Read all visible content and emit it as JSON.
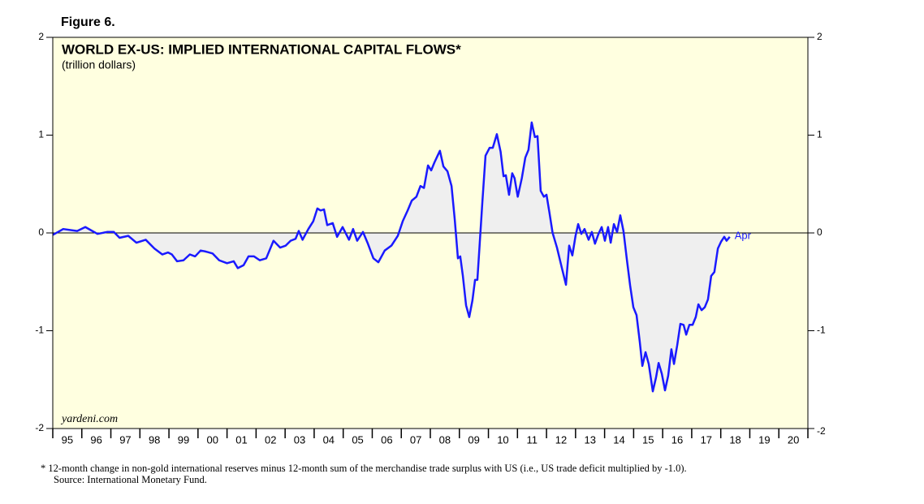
{
  "chart_data": {
    "type": "line",
    "figure_label": "Figure 6.",
    "title": "WORLD EX-US: IMPLIED INTERNATIONAL CAPITAL FLOWS*",
    "subtitle": "(trillion dollars)",
    "watermark": "yardeni.com",
    "annotation": "Apr",
    "footnote": "*  12-month change in non-gold international reserves minus 12-month sum of the merchandise trade surplus with US (i.e., US trade deficit multiplied by -1.0).",
    "source": "Source: International Monetary Fund.",
    "area_fill": "#efefef",
    "background": "#ffffe0",
    "series": [
      {
        "name": "World ex-US implied capital flows",
        "color": "#1a1aff",
        "x": [
          1995.0,
          1995.36,
          1995.84,
          1996.12,
          1996.3,
          1996.54,
          1996.87,
          1997.1,
          1997.3,
          1997.6,
          1997.88,
          1998.2,
          1998.5,
          1998.77,
          1998.97,
          1999.1,
          1999.28,
          1999.5,
          1999.72,
          1999.9,
          2000.09,
          2000.26,
          2000.5,
          2000.73,
          2001.0,
          2001.23,
          2001.37,
          2001.57,
          2001.74,
          2001.93,
          2002.13,
          2002.35,
          2002.6,
          2002.83,
          2003.02,
          2003.19,
          2003.36,
          2003.47,
          2003.6,
          2003.8,
          2003.97,
          2004.11,
          2004.22,
          2004.34,
          2004.45,
          2004.64,
          2004.79,
          2004.98,
          2005.2,
          2005.34,
          2005.48,
          2005.68,
          2005.85,
          2006.04,
          2006.21,
          2006.43,
          2006.66,
          2006.88,
          2007.05,
          2007.22,
          2007.36,
          2007.52,
          2007.66,
          2007.78,
          2007.92,
          2008.03,
          2008.14,
          2008.25,
          2008.33,
          2008.45,
          2008.59,
          2008.73,
          2008.84,
          2008.95,
          2009.03,
          2009.12,
          2009.23,
          2009.34,
          2009.45,
          2009.54,
          2009.62,
          2009.7,
          2009.79,
          2009.9,
          2010.04,
          2010.15,
          2010.29,
          2010.42,
          2010.52,
          2010.6,
          2010.71,
          2010.82,
          2010.9,
          2011.01,
          2011.15,
          2011.27,
          2011.38,
          2011.49,
          2011.6,
          2011.69,
          2011.8,
          2011.91,
          2012.0,
          2012.1,
          2012.21,
          2012.36,
          2012.53,
          2012.67,
          2012.78,
          2012.89,
          2013.0,
          2013.09,
          2013.2,
          2013.31,
          2013.45,
          2013.56,
          2013.67,
          2013.79,
          2013.9,
          2014.01,
          2014.12,
          2014.21,
          2014.32,
          2014.43,
          2014.54,
          2014.65,
          2014.77,
          2014.88,
          2014.99,
          2015.1,
          2015.21,
          2015.3,
          2015.41,
          2015.52,
          2015.66,
          2015.77,
          2015.86,
          2015.97,
          2016.08,
          2016.19,
          2016.3,
          2016.39,
          2016.5,
          2016.61,
          2016.72,
          2016.81,
          2016.92,
          2017.03,
          2017.14,
          2017.23,
          2017.34,
          2017.45,
          2017.56,
          2017.67,
          2017.78,
          2017.9,
          2018.01,
          2018.12,
          2018.2,
          2018.31
        ],
        "values": [
          -0.02,
          0.04,
          0.02,
          0.06,
          0.03,
          -0.01,
          0.01,
          0.01,
          -0.05,
          -0.03,
          -0.1,
          -0.07,
          -0.16,
          -0.22,
          -0.2,
          -0.22,
          -0.29,
          -0.28,
          -0.22,
          -0.24,
          -0.18,
          -0.19,
          -0.21,
          -0.28,
          -0.31,
          -0.29,
          -0.36,
          -0.33,
          -0.24,
          -0.24,
          -0.28,
          -0.26,
          -0.08,
          -0.15,
          -0.13,
          -0.08,
          -0.06,
          0.02,
          -0.07,
          0.04,
          0.12,
          0.25,
          0.23,
          0.24,
          0.08,
          0.1,
          -0.04,
          0.06,
          -0.07,
          0.04,
          -0.08,
          0.01,
          -0.11,
          -0.26,
          -0.3,
          -0.18,
          -0.13,
          -0.03,
          0.12,
          0.23,
          0.33,
          0.37,
          0.48,
          0.46,
          0.69,
          0.64,
          0.72,
          0.79,
          0.84,
          0.68,
          0.63,
          0.48,
          0.14,
          -0.26,
          -0.24,
          -0.44,
          -0.74,
          -0.86,
          -0.69,
          -0.48,
          -0.48,
          -0.11,
          0.31,
          0.79,
          0.87,
          0.87,
          1.01,
          0.83,
          0.58,
          0.59,
          0.39,
          0.61,
          0.56,
          0.37,
          0.56,
          0.77,
          0.85,
          1.13,
          0.98,
          0.99,
          0.43,
          0.37,
          0.39,
          0.21,
          0.0,
          -0.15,
          -0.36,
          -0.53,
          -0.13,
          -0.23,
          -0.03,
          0.09,
          -0.01,
          0.04,
          -0.07,
          0.01,
          -0.11,
          -0.01,
          0.06,
          -0.08,
          0.06,
          -0.1,
          0.09,
          0.01,
          0.18,
          0.02,
          -0.28,
          -0.54,
          -0.76,
          -0.84,
          -1.11,
          -1.36,
          -1.22,
          -1.34,
          -1.62,
          -1.48,
          -1.33,
          -1.44,
          -1.61,
          -1.46,
          -1.19,
          -1.34,
          -1.15,
          -0.93,
          -0.94,
          -1.04,
          -0.94,
          -0.94,
          -0.86,
          -0.73,
          -0.79,
          -0.76,
          -0.68,
          -0.44,
          -0.4,
          -0.16,
          -0.09,
          -0.04,
          -0.08,
          -0.04
        ]
      }
    ],
    "xlim": [
      1995,
      2021
    ],
    "xticks": [
      {
        "value": 1995,
        "label": "95"
      },
      {
        "value": 1996,
        "label": "96"
      },
      {
        "value": 1997,
        "label": "97"
      },
      {
        "value": 1998,
        "label": "98"
      },
      {
        "value": 1999,
        "label": "99"
      },
      {
        "value": 2000,
        "label": "00"
      },
      {
        "value": 2001,
        "label": "01"
      },
      {
        "value": 2002,
        "label": "02"
      },
      {
        "value": 2003,
        "label": "03"
      },
      {
        "value": 2004,
        "label": "04"
      },
      {
        "value": 2005,
        "label": "05"
      },
      {
        "value": 2006,
        "label": "06"
      },
      {
        "value": 2007,
        "label": "07"
      },
      {
        "value": 2008,
        "label": "08"
      },
      {
        "value": 2009,
        "label": "09"
      },
      {
        "value": 2010,
        "label": "10"
      },
      {
        "value": 2011,
        "label": "11"
      },
      {
        "value": 2012,
        "label": "12"
      },
      {
        "value": 2013,
        "label": "13"
      },
      {
        "value": 2014,
        "label": "14"
      },
      {
        "value": 2015,
        "label": "15"
      },
      {
        "value": 2016,
        "label": "16"
      },
      {
        "value": 2017,
        "label": "17"
      },
      {
        "value": 2018,
        "label": "18"
      },
      {
        "value": 2019,
        "label": "19"
      },
      {
        "value": 2020,
        "label": "20"
      }
    ],
    "ylim": [
      -2,
      2
    ],
    "yticks": [
      -2,
      -1,
      0,
      1,
      2
    ],
    "y2lim": [
      -2,
      2
    ],
    "y2ticks": [
      -2,
      -1,
      0,
      1,
      2
    ]
  }
}
